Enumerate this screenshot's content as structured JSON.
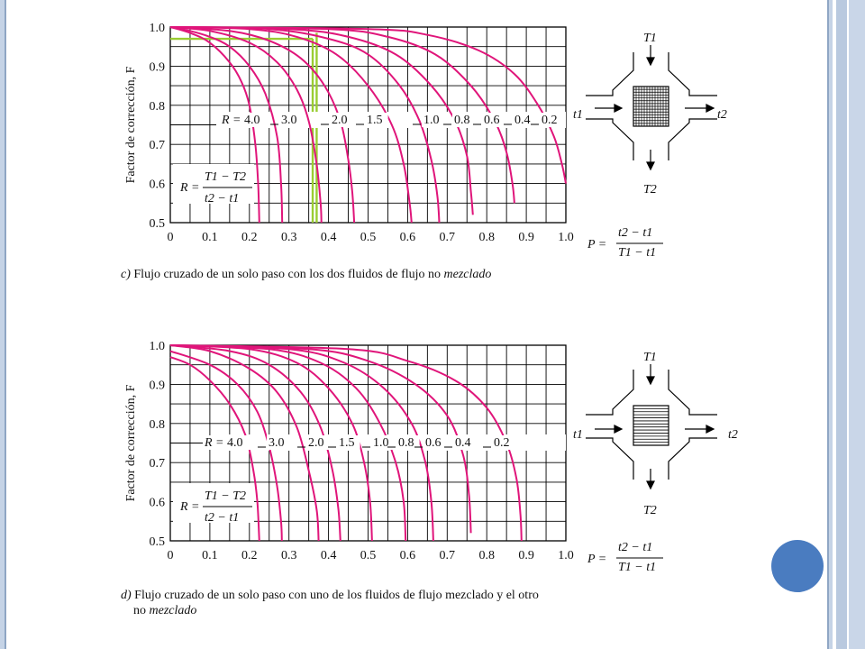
{
  "colors": {
    "curve": "#e0157a",
    "highlight": "#9acd32",
    "grid": "#000000",
    "accent_circle": "#4a7cc0",
    "frame": "#c5d3e6"
  },
  "formulas": {
    "R_lhs": "R =",
    "R_num": "T1 − T2",
    "R_den": "t2 − t1",
    "P_lhs": "P =",
    "P_num": "t2 − t1",
    "P_den": "T1 − t1"
  },
  "diagram_labels": {
    "T1": "T1",
    "T2": "T2",
    "t1": "t1",
    "t2": "t2"
  },
  "chart_data": [
    {
      "type": "line",
      "caption_prefix": "c)",
      "caption": "Flujo cruzado de un solo paso con los dos fluidos de flujo no",
      "caption_italic": "mezclado",
      "ylabel": "Factor de corrección, F",
      "xlim": [
        0,
        1.0
      ],
      "ylim": [
        0.5,
        1.0
      ],
      "xticks": [
        "0",
        "0.1",
        "0.2",
        "0.3",
        "0.4",
        "0.5",
        "0.6",
        "0.7",
        "0.8",
        "0.9",
        "1.0"
      ],
      "yticks": [
        "1.0",
        "0.9",
        "0.8",
        "0.7",
        "0.6",
        "0.5"
      ],
      "grid": true,
      "r_label_prefix": "R = ",
      "r_labels": [
        "4.0",
        "3.0",
        "2.0",
        "1.5",
        "1.0",
        "0.8",
        "0.6",
        "0.4",
        "0.2"
      ],
      "series": [
        {
          "name": "4.0",
          "points": [
            [
              0,
              1.0
            ],
            [
              0.05,
              0.985
            ],
            [
              0.1,
              0.96
            ],
            [
              0.15,
              0.91
            ],
            [
              0.18,
              0.86
            ],
            [
              0.2,
              0.8
            ],
            [
              0.215,
              0.7
            ],
            [
              0.222,
              0.6
            ],
            [
              0.225,
              0.5
            ]
          ]
        },
        {
          "name": "3.0",
          "points": [
            [
              0,
              1.0
            ],
            [
              0.05,
              0.99
            ],
            [
              0.1,
              0.975
            ],
            [
              0.15,
              0.95
            ],
            [
              0.2,
              0.9
            ],
            [
              0.24,
              0.83
            ],
            [
              0.27,
              0.72
            ],
            [
              0.28,
              0.6
            ],
            [
              0.283,
              0.5
            ]
          ]
        },
        {
          "name": "2.0",
          "points": [
            [
              0,
              1.0
            ],
            [
              0.1,
              0.99
            ],
            [
              0.2,
              0.96
            ],
            [
              0.27,
              0.91
            ],
            [
              0.32,
              0.84
            ],
            [
              0.35,
              0.76
            ],
            [
              0.37,
              0.65
            ],
            [
              0.38,
              0.55
            ],
            [
              0.382,
              0.5
            ]
          ]
        },
        {
          "name": "1.5",
          "points": [
            [
              0,
              1.0
            ],
            [
              0.15,
              0.99
            ],
            [
              0.25,
              0.965
            ],
            [
              0.33,
              0.92
            ],
            [
              0.39,
              0.85
            ],
            [
              0.43,
              0.76
            ],
            [
              0.45,
              0.66
            ],
            [
              0.46,
              0.58
            ],
            [
              0.465,
              0.5
            ]
          ]
        },
        {
          "name": "1.0",
          "points": [
            [
              0,
              1.0
            ],
            [
              0.2,
              0.995
            ],
            [
              0.32,
              0.975
            ],
            [
              0.42,
              0.93
            ],
            [
              0.5,
              0.85
            ],
            [
              0.56,
              0.75
            ],
            [
              0.59,
              0.65
            ],
            [
              0.605,
              0.55
            ],
            [
              0.61,
              0.5
            ]
          ]
        },
        {
          "name": "0.8",
          "points": [
            [
              0,
              1.0
            ],
            [
              0.25,
              0.995
            ],
            [
              0.4,
              0.97
            ],
            [
              0.5,
              0.93
            ],
            [
              0.58,
              0.85
            ],
            [
              0.63,
              0.76
            ],
            [
              0.66,
              0.66
            ],
            [
              0.675,
              0.57
            ],
            [
              0.68,
              0.5
            ]
          ]
        },
        {
          "name": "0.6",
          "points": [
            [
              0,
              1.0
            ],
            [
              0.3,
              0.995
            ],
            [
              0.45,
              0.975
            ],
            [
              0.57,
              0.93
            ],
            [
              0.66,
              0.85
            ],
            [
              0.72,
              0.76
            ],
            [
              0.75,
              0.67
            ],
            [
              0.76,
              0.58
            ],
            [
              0.765,
              0.52
            ]
          ]
        },
        {
          "name": "0.4",
          "points": [
            [
              0,
              1.0
            ],
            [
              0.4,
              0.995
            ],
            [
              0.55,
              0.975
            ],
            [
              0.67,
              0.93
            ],
            [
              0.76,
              0.85
            ],
            [
              0.82,
              0.76
            ],
            [
              0.85,
              0.68
            ],
            [
              0.865,
              0.6
            ],
            [
              0.87,
              0.55
            ]
          ]
        },
        {
          "name": "0.2",
          "points": [
            [
              0,
              1.0
            ],
            [
              0.5,
              0.995
            ],
            [
              0.65,
              0.98
            ],
            [
              0.78,
              0.94
            ],
            [
              0.87,
              0.88
            ],
            [
              0.93,
              0.8
            ],
            [
              0.97,
              0.72
            ],
            [
              0.99,
              0.65
            ],
            [
              1.0,
              0.6
            ]
          ]
        }
      ],
      "highlight_lines": [
        {
          "y": 0.97,
          "x_from": 0,
          "x_to": 0.36
        },
        {
          "x": 0.36,
          "y_from": 0.5,
          "y_to": 0.97
        },
        {
          "x": 0.37,
          "y_from": 0.5,
          "y_to": 0.985
        }
      ]
    },
    {
      "type": "line",
      "caption_prefix": "d)",
      "caption": "Flujo cruzado de un solo paso con uno de los fluidos de flujo mezclado y el otro",
      "caption_line2": "no",
      "caption_italic": "mezclado",
      "ylabel": "Factor de corrección, F",
      "xlim": [
        0,
        1.0
      ],
      "ylim": [
        0.5,
        1.0
      ],
      "xticks": [
        "0",
        "0.1",
        "0.2",
        "0.3",
        "0.4",
        "0.5",
        "0.6",
        "0.7",
        "0.8",
        "0.9",
        "1.0"
      ],
      "yticks": [
        "1.0",
        "0.9",
        "0.8",
        "0.7",
        "0.6",
        "0.5"
      ],
      "grid": true,
      "r_label_prefix": "R = ",
      "r_labels": [
        "4.0",
        "3.0",
        "2.0",
        "1.5",
        "1.0",
        "0.8",
        "0.6",
        "0.4",
        "0.2"
      ],
      "series": [
        {
          "name": "4.0",
          "points": [
            [
              0,
              0.97
            ],
            [
              0.05,
              0.95
            ],
            [
              0.1,
              0.91
            ],
            [
              0.15,
              0.85
            ],
            [
              0.19,
              0.77
            ],
            [
              0.21,
              0.68
            ],
            [
              0.22,
              0.6
            ],
            [
              0.225,
              0.5
            ]
          ]
        },
        {
          "name": "3.0",
          "points": [
            [
              0,
              0.985
            ],
            [
              0.1,
              0.95
            ],
            [
              0.17,
              0.9
            ],
            [
              0.22,
              0.83
            ],
            [
              0.25,
              0.74
            ],
            [
              0.27,
              0.64
            ],
            [
              0.28,
              0.55
            ],
            [
              0.282,
              0.5
            ]
          ]
        },
        {
          "name": "2.0",
          "points": [
            [
              0,
              1.0
            ],
            [
              0.1,
              0.985
            ],
            [
              0.2,
              0.94
            ],
            [
              0.27,
              0.88
            ],
            [
              0.32,
              0.79
            ],
            [
              0.35,
              0.68
            ],
            [
              0.37,
              0.58
            ],
            [
              0.375,
              0.5
            ]
          ]
        },
        {
          "name": "1.5",
          "points": [
            [
              0,
              1.0
            ],
            [
              0.15,
              0.985
            ],
            [
              0.25,
              0.95
            ],
            [
              0.33,
              0.88
            ],
            [
              0.38,
              0.79
            ],
            [
              0.41,
              0.68
            ],
            [
              0.425,
              0.58
            ],
            [
              0.43,
              0.5
            ]
          ]
        },
        {
          "name": "1.0",
          "points": [
            [
              0,
              1.0
            ],
            [
              0.2,
              0.99
            ],
            [
              0.32,
              0.955
            ],
            [
              0.4,
              0.89
            ],
            [
              0.46,
              0.8
            ],
            [
              0.49,
              0.7
            ],
            [
              0.505,
              0.6
            ],
            [
              0.51,
              0.5
            ]
          ]
        },
        {
          "name": "0.8",
          "points": [
            [
              0,
              1.0
            ],
            [
              0.25,
              0.99
            ],
            [
              0.38,
              0.955
            ],
            [
              0.47,
              0.89
            ],
            [
              0.53,
              0.8
            ],
            [
              0.57,
              0.7
            ],
            [
              0.59,
              0.6
            ],
            [
              0.595,
              0.5
            ]
          ]
        },
        {
          "name": "0.6",
          "points": [
            [
              0,
              1.0
            ],
            [
              0.3,
              0.99
            ],
            [
              0.44,
              0.955
            ],
            [
              0.54,
              0.89
            ],
            [
              0.61,
              0.8
            ],
            [
              0.645,
              0.7
            ],
            [
              0.66,
              0.6
            ],
            [
              0.665,
              0.5
            ]
          ]
        },
        {
          "name": "0.4",
          "points": [
            [
              0,
              1.0
            ],
            [
              0.35,
              0.99
            ],
            [
              0.5,
              0.96
            ],
            [
              0.62,
              0.9
            ],
            [
              0.7,
              0.82
            ],
            [
              0.74,
              0.72
            ],
            [
              0.755,
              0.62
            ],
            [
              0.76,
              0.52
            ]
          ]
        },
        {
          "name": "0.2",
          "points": [
            [
              0,
              1.0
            ],
            [
              0.45,
              0.99
            ],
            [
              0.6,
              0.96
            ],
            [
              0.72,
              0.91
            ],
            [
              0.8,
              0.84
            ],
            [
              0.85,
              0.75
            ],
            [
              0.875,
              0.66
            ],
            [
              0.885,
              0.57
            ],
            [
              0.888,
              0.5
            ]
          ]
        }
      ]
    }
  ]
}
